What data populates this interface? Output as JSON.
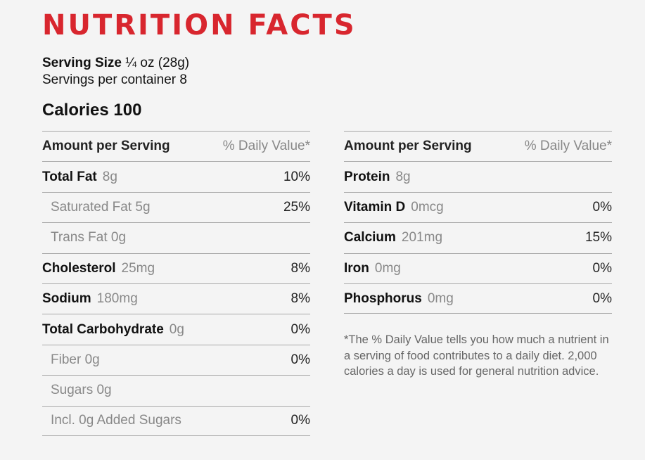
{
  "title": "NUTRITION FACTS",
  "serving": {
    "size_label": "Serving Size",
    "size_value": "¼ oz (28g)",
    "per_container": "Servings per container 8"
  },
  "calories": "Calories 100",
  "table_header": {
    "left": "Amount per Serving",
    "right": "% Daily Value*"
  },
  "left_rows": [
    {
      "name": "Total Fat",
      "amount": "8g",
      "pct": "10%",
      "sub": false
    },
    {
      "name": "Saturated Fat 5g",
      "amount": "",
      "pct": "25%",
      "sub": true
    },
    {
      "name": "Trans Fat 0g",
      "amount": "",
      "pct": "",
      "sub": true
    },
    {
      "name": "Cholesterol",
      "amount": "25mg",
      "pct": "8%",
      "sub": false
    },
    {
      "name": "Sodium",
      "amount": "180mg",
      "pct": "8%",
      "sub": false
    },
    {
      "name": "Total Carbohydrate",
      "amount": "0g",
      "pct": "0%",
      "sub": false
    },
    {
      "name": "Fiber 0g",
      "amount": "",
      "pct": "0%",
      "sub": true
    },
    {
      "name": "Sugars 0g",
      "amount": "",
      "pct": "",
      "sub": true
    },
    {
      "name": "Incl. 0g Added Sugars",
      "amount": "",
      "pct": "0%",
      "sub": true
    }
  ],
  "right_rows": [
    {
      "name": "Protein",
      "amount": "8g",
      "pct": "",
      "sub": false
    },
    {
      "name": "Vitamin D",
      "amount": "0mcg",
      "pct": "0%",
      "sub": false
    },
    {
      "name": "Calcium",
      "amount": "201mg",
      "pct": "15%",
      "sub": false
    },
    {
      "name": "Iron",
      "amount": "0mg",
      "pct": "0%",
      "sub": false
    },
    {
      "name": "Phosphorus",
      "amount": "0mg",
      "pct": "0%",
      "sub": false
    }
  ],
  "footnote": "*The % Daily Value tells you how much a nutrient in a serving of food contributes to a daily diet. 2,000 calories a day is used for general nutrition advice.",
  "colors": {
    "title": "#d8262e",
    "muted": "#888888",
    "rule": "#a8a8a8",
    "background": "#f4f4f4"
  }
}
